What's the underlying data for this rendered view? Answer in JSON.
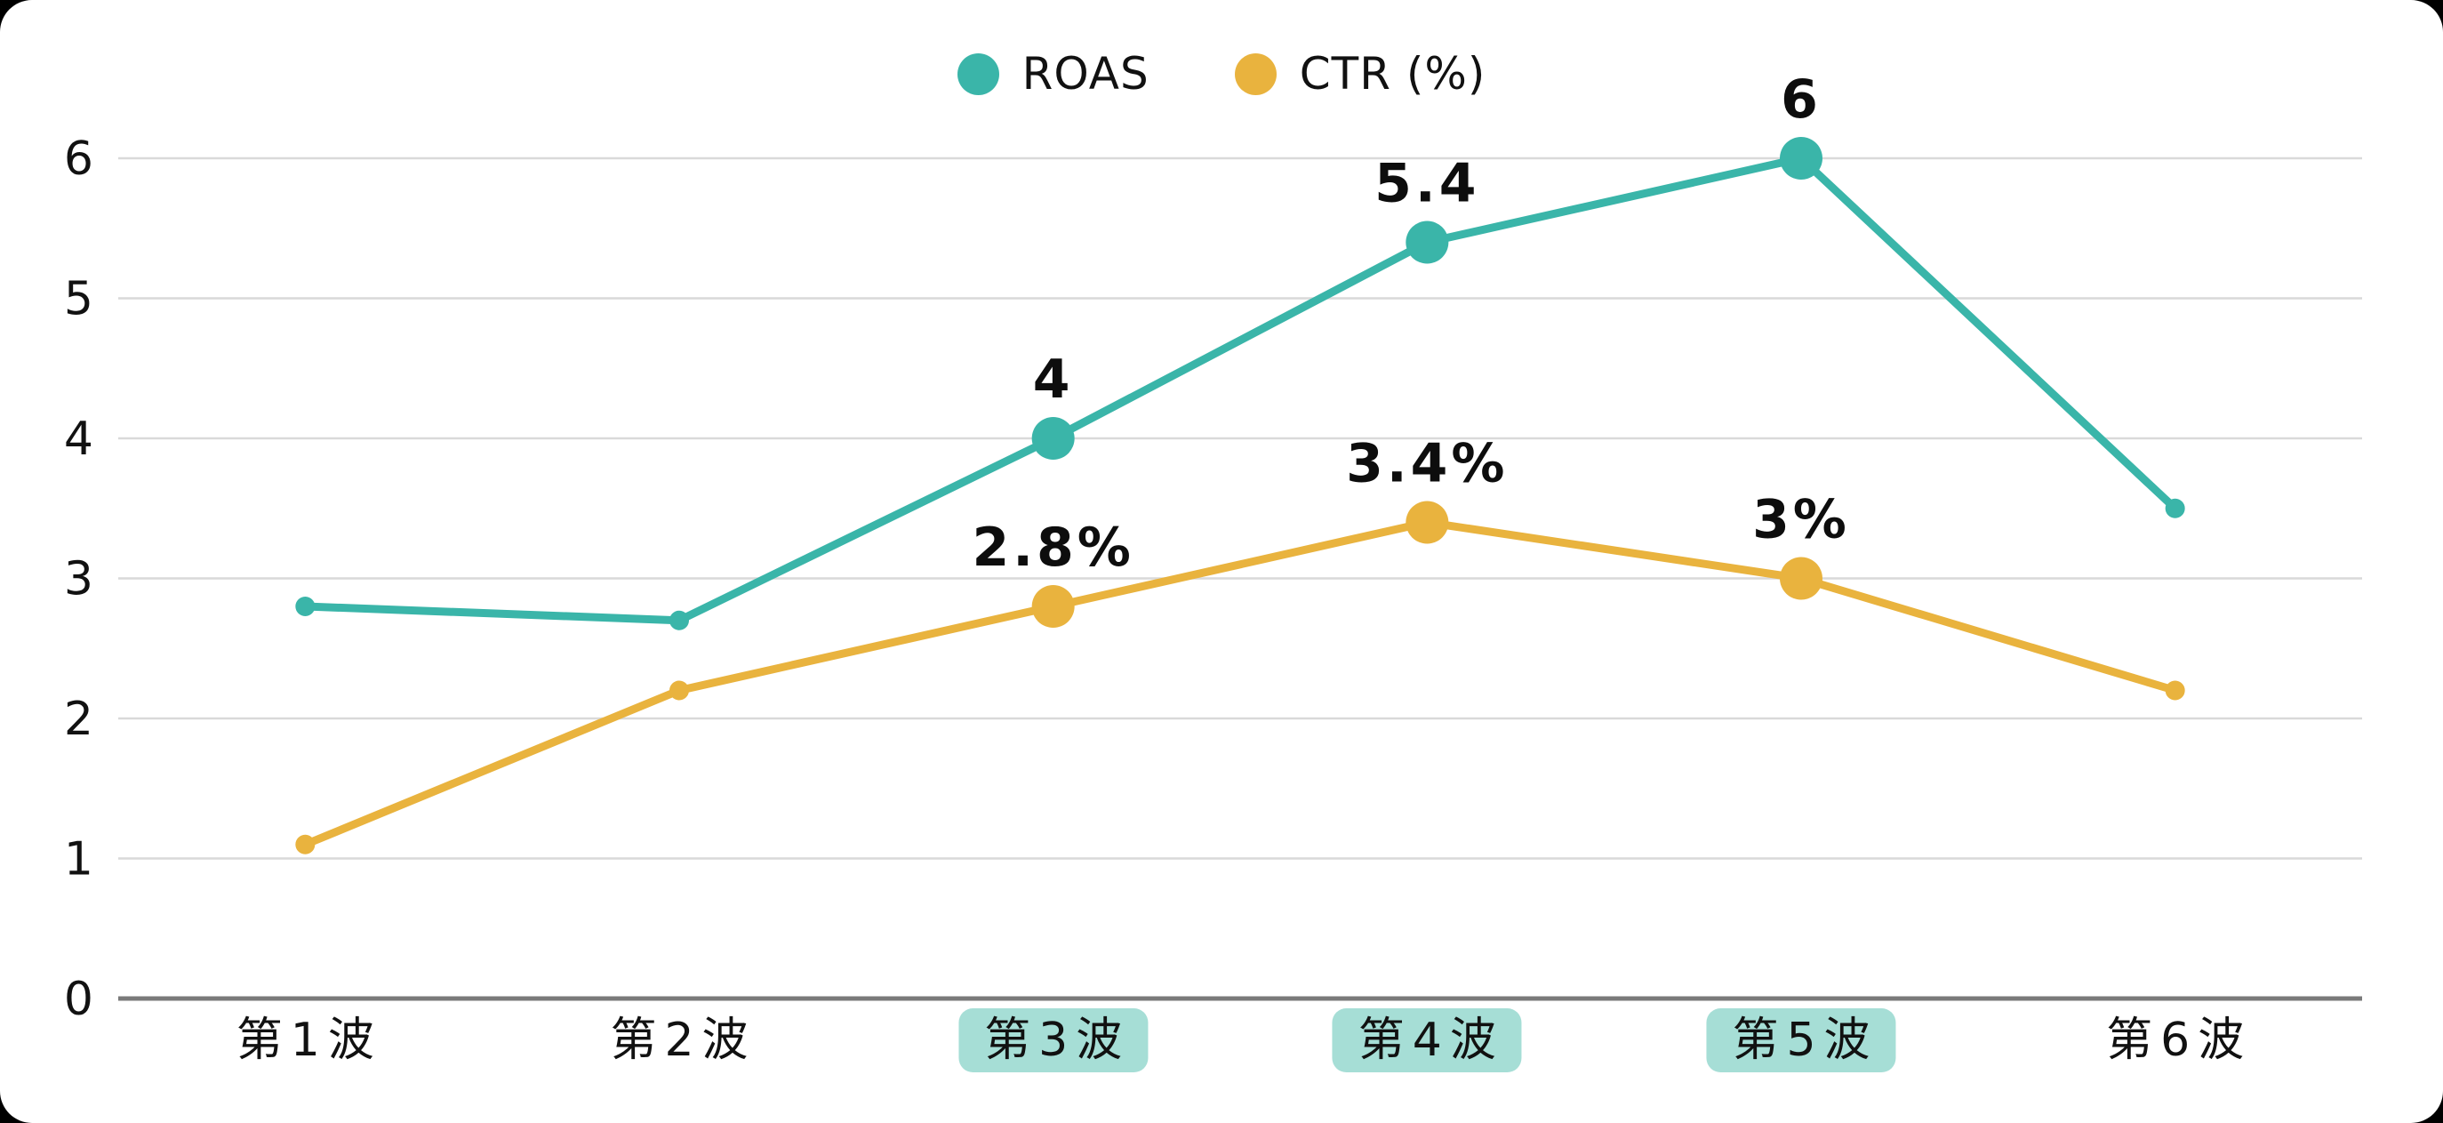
{
  "card": {
    "background": "#ffffff",
    "page_background": "#000000"
  },
  "legend": {
    "items": [
      {
        "label": "ROAS",
        "color": "#3ab5a9"
      },
      {
        "label": "CTR (%)",
        "color": "#e9b33e"
      }
    ]
  },
  "colors": {
    "roas_line": "#3ab5a9",
    "ctr_line": "#e9b33e",
    "x_label_highlight_bg": "#a6ded6",
    "gridline": "#d9d9d9",
    "axis_line": "#7a7a7a",
    "text": "#111111"
  },
  "chart_data": {
    "type": "line",
    "categories": [
      "第1波",
      "第2波",
      "第3波",
      "第4波",
      "第5波",
      "第6波"
    ],
    "highlighted_categories": [
      false,
      false,
      true,
      true,
      true,
      false
    ],
    "series": [
      {
        "name": "ROAS",
        "color": "#3ab5a9",
        "values": [
          2.8,
          2.7,
          4,
          5.4,
          6,
          3.5
        ],
        "point_labels": [
          null,
          null,
          "4",
          "5.4",
          "6",
          null
        ]
      },
      {
        "name": "CTR (%)",
        "color": "#e9b33e",
        "values": [
          1.1,
          2.2,
          2.8,
          3.4,
          3,
          2.2
        ],
        "point_labels": [
          null,
          null,
          "2.8%",
          "3.4%",
          "3%",
          null
        ]
      }
    ],
    "title": "",
    "xlabel": "",
    "ylabel": "",
    "ylim": [
      0,
      6
    ],
    "yticks": [
      0,
      1,
      2,
      3,
      4,
      5,
      6
    ],
    "grid": true,
    "legend_position": "top-center"
  }
}
